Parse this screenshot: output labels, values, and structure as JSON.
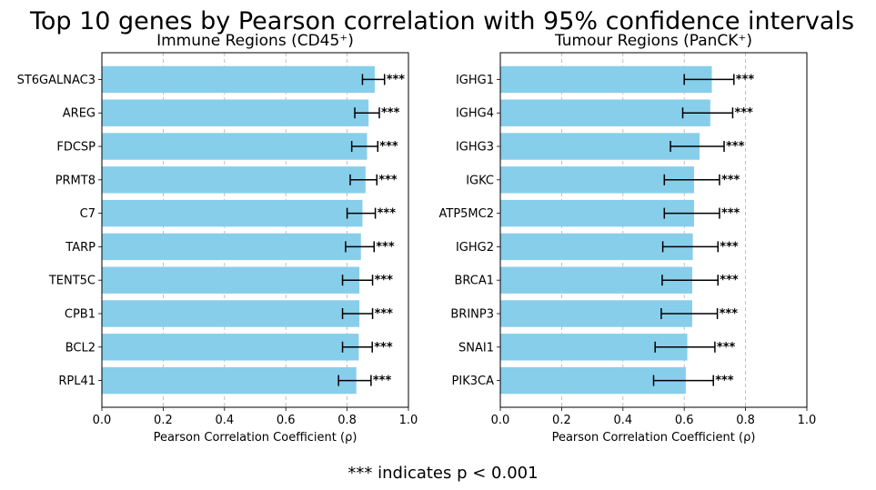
{
  "figure": {
    "suptitle": "Top 10 genes by Pearson correlation with 95% confidence intervals",
    "footnote": "*** indicates p < 0.001"
  },
  "chart_data": [
    {
      "type": "bar",
      "orientation": "horizontal",
      "title": "Immune Regions (CD45⁺)",
      "xlabel": "Pearson Correlation Coefficient (ρ)",
      "ylabel": "",
      "xlim": [
        0,
        1
      ],
      "xticks": [
        "0.0",
        "0.2",
        "0.4",
        "0.6",
        "0.8",
        "1.0"
      ],
      "grid": "x dashed",
      "bar_color": "#87CEEB",
      "categories": [
        "ST6GALNAC3",
        "AREG",
        "FDCSP",
        "PRMT8",
        "C7",
        "TARP",
        "TENT5C",
        "CPB1",
        "BCL2",
        "RPL41"
      ],
      "values": [
        0.89,
        0.87,
        0.865,
        0.86,
        0.85,
        0.845,
        0.84,
        0.84,
        0.838,
        0.83
      ],
      "ci_low": [
        0.85,
        0.825,
        0.815,
        0.81,
        0.8,
        0.795,
        0.785,
        0.785,
        0.785,
        0.772
      ],
      "ci_high": [
        0.922,
        0.905,
        0.9,
        0.897,
        0.892,
        0.888,
        0.883,
        0.883,
        0.882,
        0.878
      ],
      "significance": [
        "***",
        "***",
        "***",
        "***",
        "***",
        "***",
        "***",
        "***",
        "***",
        "***"
      ]
    },
    {
      "type": "bar",
      "orientation": "horizontal",
      "title": "Tumour Regions (PanCK⁺)",
      "xlabel": "Pearson Correlation Coefficient (ρ)",
      "ylabel": "",
      "xlim": [
        0,
        1
      ],
      "xticks": [
        "0.0",
        "0.2",
        "0.4",
        "0.6",
        "0.8",
        "1.0"
      ],
      "grid": "x dashed",
      "bar_color": "#87CEEB",
      "categories": [
        "IGHG1",
        "IGHG4",
        "IGHG3",
        "IGKC",
        "ATP5MC2",
        "IGHG2",
        "BRCA1",
        "BRINP3",
        "SNAI1",
        "PIK3CA"
      ],
      "values": [
        0.69,
        0.685,
        0.65,
        0.632,
        0.632,
        0.628,
        0.626,
        0.626,
        0.61,
        0.605
      ],
      "ci_low": [
        0.6,
        0.595,
        0.555,
        0.535,
        0.535,
        0.53,
        0.528,
        0.525,
        0.505,
        0.5
      ],
      "ci_high": [
        0.762,
        0.758,
        0.73,
        0.715,
        0.715,
        0.71,
        0.71,
        0.708,
        0.7,
        0.695
      ],
      "significance": [
        "***",
        "***",
        "***",
        "***",
        "***",
        "***",
        "***",
        "***",
        "***",
        "***"
      ]
    }
  ]
}
